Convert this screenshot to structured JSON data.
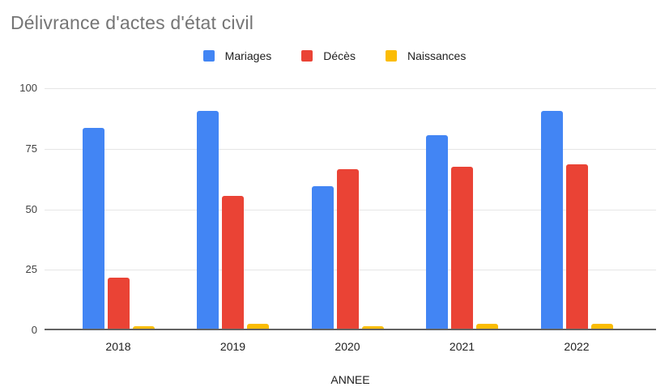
{
  "chart_data": {
    "type": "bar",
    "title": "Délivrance d'actes d'état civil",
    "categories": [
      "2018",
      "2019",
      "2020",
      "2021",
      "2022"
    ],
    "series": [
      {
        "name": "Mariages",
        "color": "#4285F4",
        "values": [
          83,
          90,
          59,
          80,
          90
        ]
      },
      {
        "name": "Décès",
        "color": "#EA4335",
        "values": [
          21,
          55,
          66,
          67,
          68
        ]
      },
      {
        "name": "Naissances",
        "color": "#FBBC04",
        "values": [
          1,
          2,
          1,
          2,
          2
        ]
      }
    ],
    "xlabel": "ANNEE",
    "ylabel": "",
    "ylim": [
      0,
      100
    ],
    "yticks": [
      0,
      25,
      50,
      75,
      100
    ],
    "grid": true,
    "legend_position": "top"
  },
  "colors": {
    "title_text": "#757575",
    "axis_label_text": "#212121",
    "ytick_text": "#424242",
    "gridline": "#e6e6e6",
    "axis_line": "#636363",
    "background": "#ffffff"
  }
}
